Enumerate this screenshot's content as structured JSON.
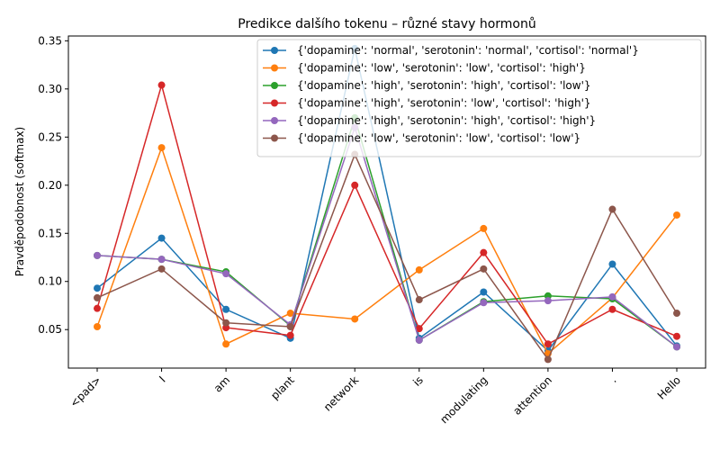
{
  "chart_data": {
    "type": "line",
    "title": "Predikce dalšího tokenu – různé stavy hormonů",
    "xlabel": "",
    "ylabel": "Pravděpodobnost (softmax)",
    "categories": [
      "<pad>",
      "I",
      "am",
      "plant",
      "network",
      "is",
      "modulating",
      "attention",
      ".",
      "Hello"
    ],
    "yticks": [
      "0.05",
      "0.10",
      "0.15",
      "0.20",
      "0.25",
      "0.30",
      "0.35"
    ],
    "ylim": [
      0.01,
      0.355
    ],
    "grid": false,
    "legend_position": "top-right",
    "series": [
      {
        "name": "{'dopamine': 'normal', 'serotonin': 'normal', 'cortisol': 'normal'}",
        "color": "#1f77b4",
        "values": [
          0.093,
          0.145,
          0.071,
          0.041,
          0.342,
          0.041,
          0.089,
          0.028,
          0.118,
          0.033
        ]
      },
      {
        "name": "{'dopamine': 'low', 'serotonin': 'low', 'cortisol': 'high'}",
        "color": "#ff7f0e",
        "values": [
          0.053,
          0.239,
          0.035,
          0.067,
          0.061,
          0.112,
          0.155,
          0.025,
          0.083,
          0.169
        ]
      },
      {
        "name": "{'dopamine': 'high', 'serotonin': 'high', 'cortisol': 'low'}",
        "color": "#2ca02c",
        "values": [
          0.127,
          0.123,
          0.11,
          0.054,
          0.27,
          0.039,
          0.079,
          0.085,
          0.082,
          0.032
        ]
      },
      {
        "name": "{'dopamine': 'high', 'serotonin': 'low', 'cortisol': 'high'}",
        "color": "#d62728",
        "values": [
          0.072,
          0.304,
          0.052,
          0.044,
          0.2,
          0.051,
          0.13,
          0.035,
          0.071,
          0.043
        ]
      },
      {
        "name": "{'dopamine': 'high', 'serotonin': 'high', 'cortisol': 'high'}",
        "color": "#9467bd",
        "values": [
          0.127,
          0.123,
          0.108,
          0.055,
          0.26,
          0.039,
          0.078,
          0.08,
          0.084,
          0.032
        ]
      },
      {
        "name": "{'dopamine': 'low', 'serotonin': 'low', 'cortisol': 'low'}",
        "color": "#8c564b",
        "values": [
          0.083,
          0.113,
          0.057,
          0.053,
          0.232,
          0.081,
          0.113,
          0.019,
          0.175,
          0.067
        ]
      }
    ]
  }
}
